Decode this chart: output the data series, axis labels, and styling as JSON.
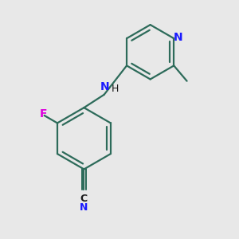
{
  "background_color": "#e8e8e8",
  "bond_color": "#2d6b5a",
  "N_color": "#1a1aff",
  "F_color": "#dd00dd",
  "C_color": "#1a1a1a",
  "line_width": 1.6,
  "figsize": [
    3.0,
    3.0
  ],
  "dpi": 100,
  "xlim": [
    0,
    10
  ],
  "ylim": [
    0,
    10
  ]
}
